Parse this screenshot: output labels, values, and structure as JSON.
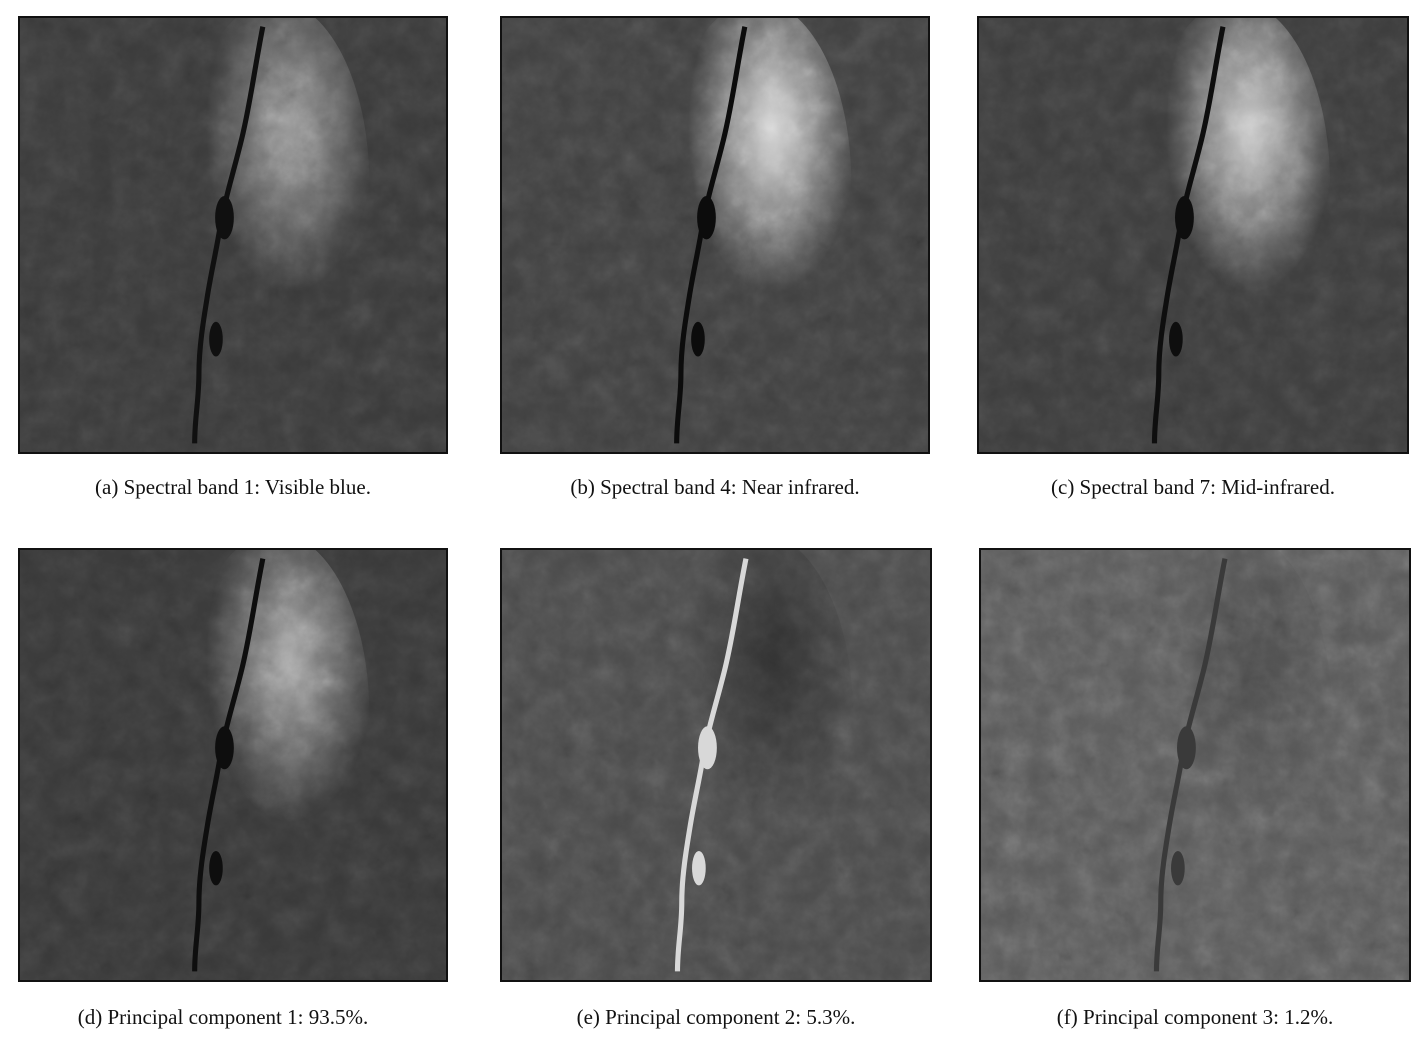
{
  "panels": [
    {
      "id": "a",
      "caption": "(a) Spectral band 1: Visible blue.",
      "image": {
        "subject": "satellite-image-band-1",
        "tone": {
          "base": "#3a3a3a",
          "valley": "#9a9a9a",
          "river": "#101010"
        }
      }
    },
    {
      "id": "b",
      "caption": "(b) Spectral band 4: Near infrared.",
      "image": {
        "subject": "satellite-image-band-4",
        "tone": {
          "base": "#404040",
          "valley": "#dcdcdc",
          "river": "#0c0c0c"
        }
      }
    },
    {
      "id": "c",
      "caption": "(c) Spectral band 7: Mid-infrared.",
      "image": {
        "subject": "satellite-image-band-7",
        "tone": {
          "base": "#3c3c3c",
          "valley": "#cfcfcf",
          "river": "#0e0e0e"
        }
      }
    },
    {
      "id": "d",
      "caption": "(d) Principal component 1: 93.5%.",
      "image": {
        "subject": "principal-component-1-image",
        "tone": {
          "base": "#383838",
          "valley": "#a8a8a8",
          "river": "#0e0e0e"
        }
      }
    },
    {
      "id": "e",
      "caption": "(e) Principal component 2: 5.3%.",
      "image": {
        "subject": "principal-component-2-image",
        "tone": {
          "base": "#4a4a4a",
          "valley": "#2e2e2e",
          "river": "#d8d8d8"
        }
      }
    },
    {
      "id": "f",
      "caption": "(f) Principal component 3: 1.2%.",
      "image": {
        "subject": "principal-component-3-image",
        "tone": {
          "base": "#5a5a5a",
          "valley": "#4a4a4a",
          "river": "#3a3a3a"
        }
      }
    }
  ]
}
